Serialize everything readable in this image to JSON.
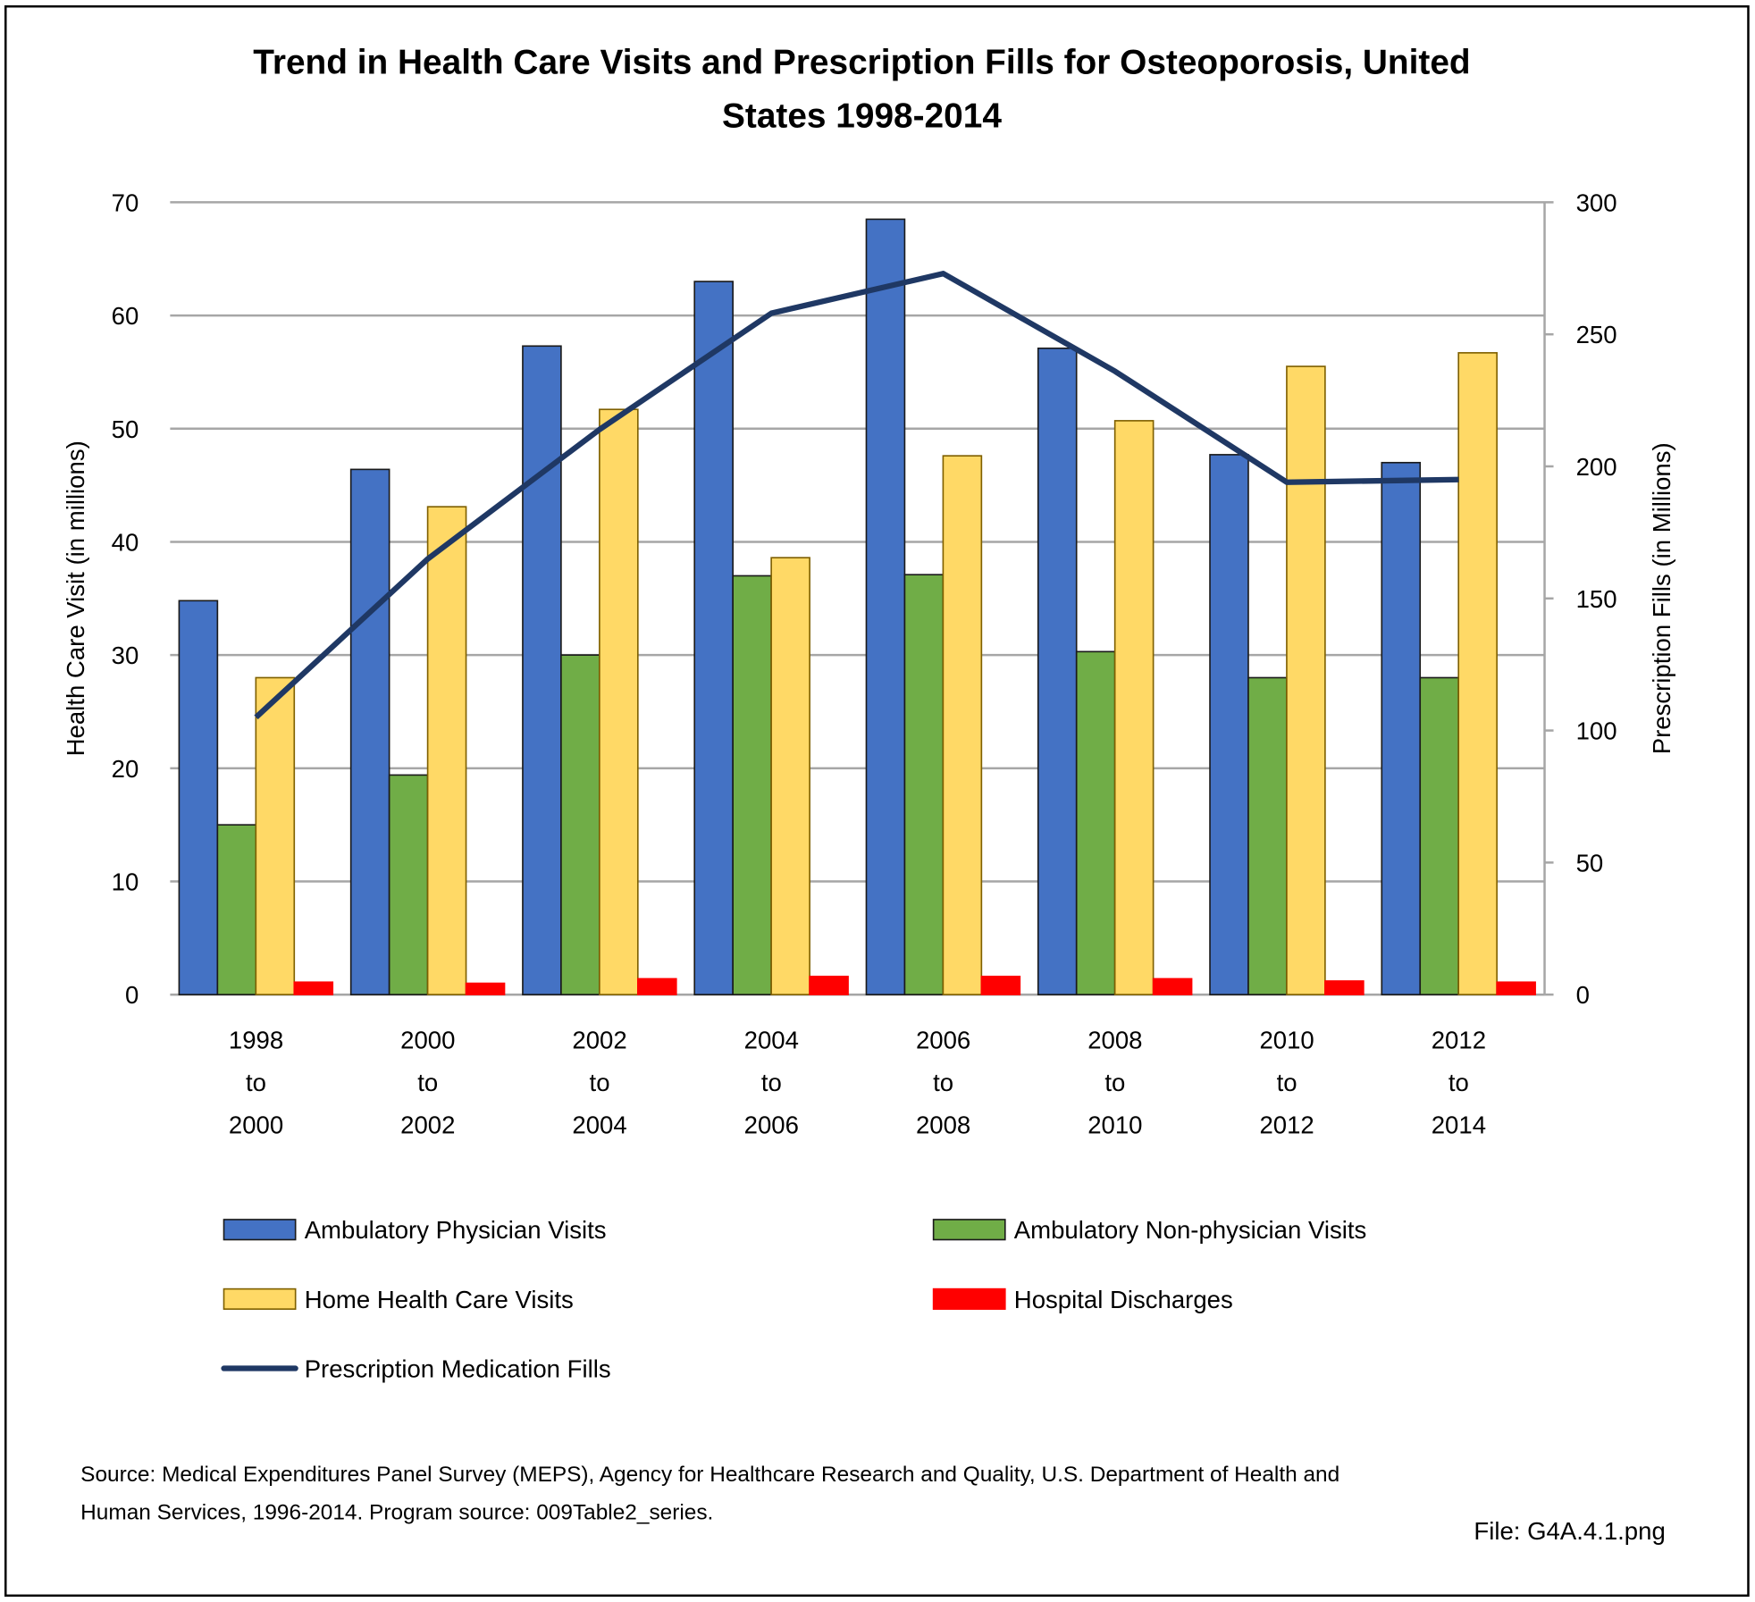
{
  "chart_data": {
    "type": "bar",
    "title": [
      "Trend in Health Care Visits and Prescription Fills for Osteoporosis, United",
      "States 1998-2014"
    ],
    "ylabel": "Health Care Visit (in millions)",
    "y2label": "Prescription Fills (in Millions)",
    "ylim": [
      0,
      70
    ],
    "y2lim": [
      0,
      300
    ],
    "yticks": [
      0,
      10,
      20,
      30,
      40,
      50,
      60,
      70
    ],
    "y2ticks": [
      0,
      50,
      100,
      150,
      200,
      250,
      300
    ],
    "grid": true,
    "legend_position": "bottom",
    "categories": [
      [
        "1998",
        "to",
        "2000"
      ],
      [
        "2000",
        "to",
        "2002"
      ],
      [
        "2002",
        "to",
        "2004"
      ],
      [
        "2004",
        "to",
        "2006"
      ],
      [
        "2006",
        "to",
        "2008"
      ],
      [
        "2008",
        "to",
        "2010"
      ],
      [
        "2010",
        "to",
        "2012"
      ],
      [
        "2012",
        "to",
        "2014"
      ]
    ],
    "series": [
      {
        "name": "Ambulatory Physician Visits",
        "type": "bar",
        "axis": "left",
        "color": "#4472C4",
        "values": [
          34.8,
          46.4,
          57.3,
          63.0,
          68.5,
          57.1,
          47.7,
          47.0
        ]
      },
      {
        "name": "Ambulatory Non-physician Visits",
        "type": "bar",
        "axis": "left",
        "color": "#70AD47",
        "values": [
          15.0,
          19.4,
          30.0,
          37.0,
          37.1,
          30.3,
          28.0,
          28.0
        ]
      },
      {
        "name": "Home Health Care Visits",
        "type": "bar",
        "axis": "left",
        "color": "#FFD966",
        "values": [
          28.0,
          43.1,
          51.7,
          38.6,
          47.6,
          50.7,
          55.5,
          56.7
        ]
      },
      {
        "name": "Hospital Discharges",
        "type": "bar",
        "axis": "left",
        "color": "#FF0000",
        "values": [
          1.1,
          1.0,
          1.4,
          1.6,
          1.6,
          1.4,
          1.2,
          1.1
        ]
      },
      {
        "name": "Prescription Medication Fills",
        "type": "line",
        "axis": "right",
        "color": "#1F3864",
        "values": [
          105,
          165,
          214,
          258,
          273,
          236,
          194,
          195
        ]
      }
    ]
  },
  "source": [
    "Source: Medical Expenditures Panel Survey (MEPS), Agency for Healthcare Research and Quality, U.S. Department of Health and",
    "Human Services, 1996-2014. Program source: 009Table2_series."
  ],
  "file_label": "File: G4A.4.1.png"
}
